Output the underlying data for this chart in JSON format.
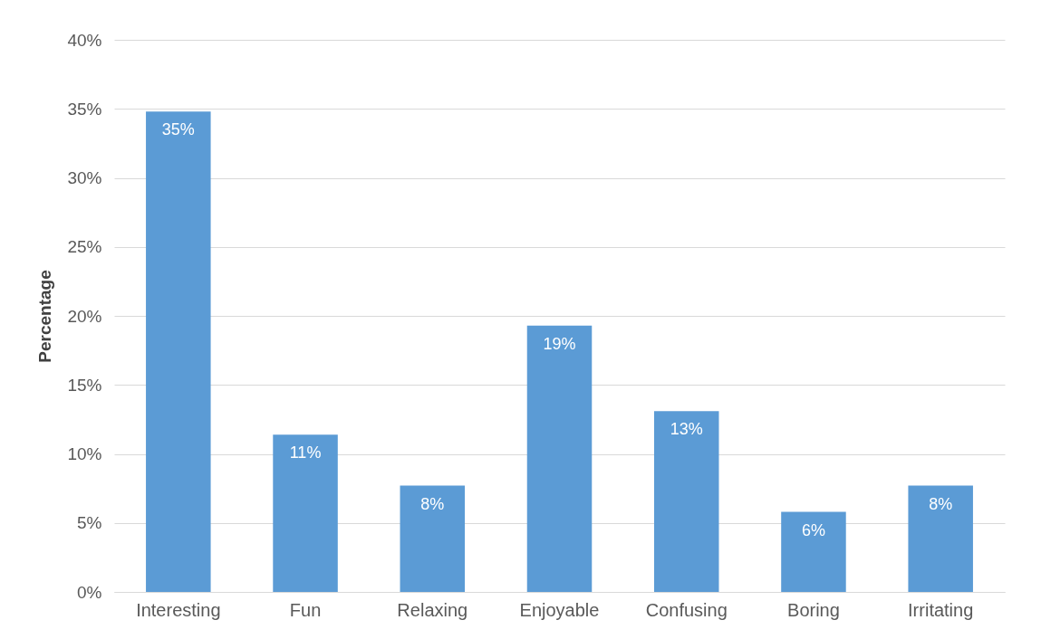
{
  "chart_data": {
    "type": "bar",
    "ylabel": "Percentage",
    "categories": [
      "Interesting",
      "Fun",
      "Relaxing",
      "Enjoyable",
      "Confusing",
      "Boring",
      "Irritating"
    ],
    "values": [
      34.8,
      11.4,
      7.7,
      19.3,
      13.1,
      5.8,
      7.7
    ],
    "value_labels": [
      "35%",
      "11%",
      "8%",
      "19%",
      "13%",
      "6%",
      "8%"
    ],
    "color": "#5b9bd5",
    "ylim": [
      0,
      40
    ],
    "yticks": [
      {
        "value": 0,
        "label": "0%"
      },
      {
        "value": 5,
        "label": "5%"
      },
      {
        "value": 10,
        "label": "10%"
      },
      {
        "value": 15,
        "label": "15%"
      },
      {
        "value": 20,
        "label": "20%"
      },
      {
        "value": 25,
        "label": "25%"
      },
      {
        "value": 30,
        "label": "30%"
      },
      {
        "value": 35,
        "label": "35%"
      },
      {
        "value": 40,
        "label": "40%"
      }
    ],
    "grid": "y"
  }
}
